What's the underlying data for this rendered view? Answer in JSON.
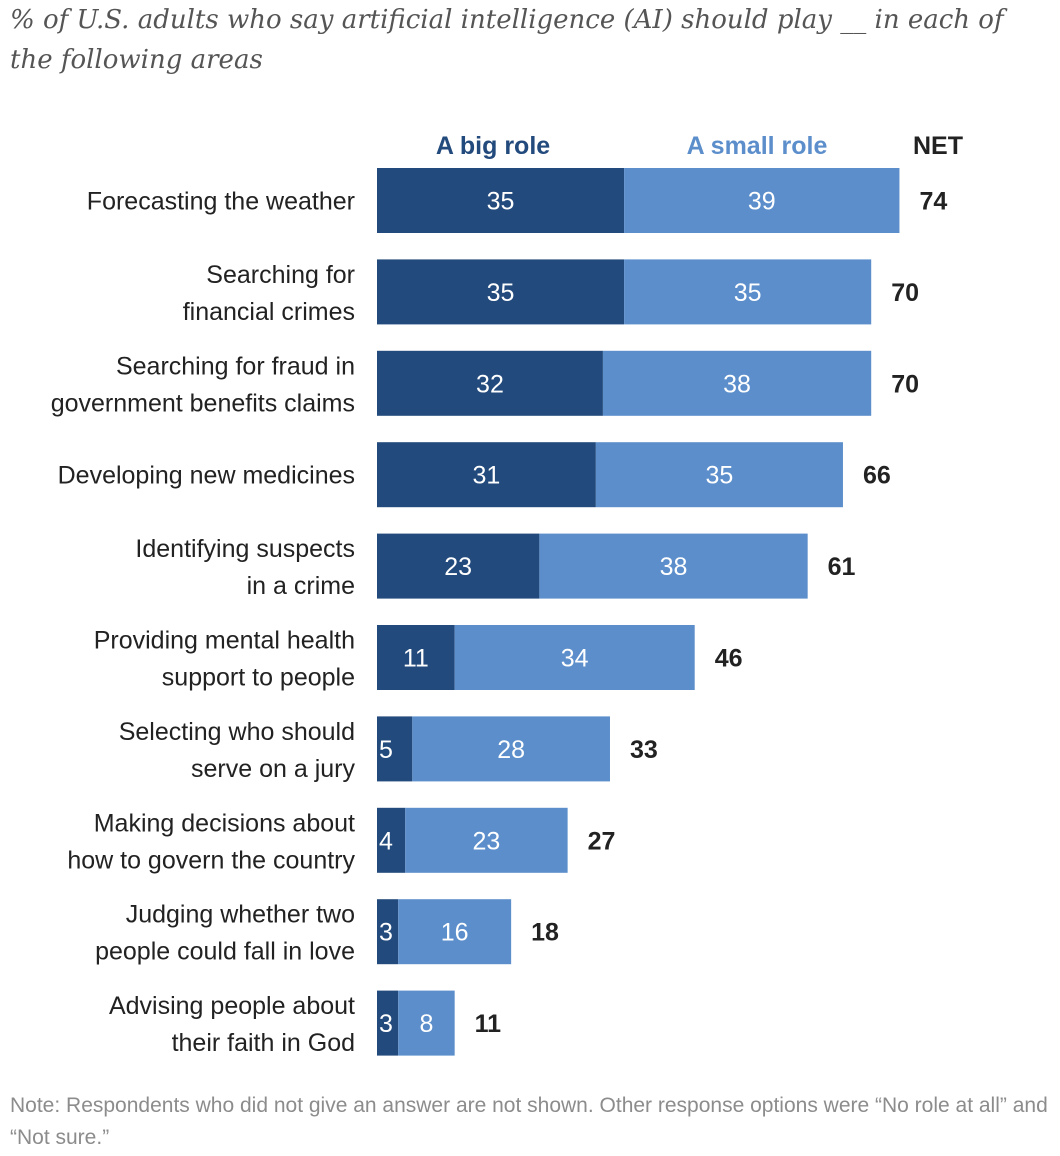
{
  "subtitle": "% of U.S. adults who say artificial intelligence (AI) should play __ in each of the following areas",
  "note": "Note: Respondents who did not give an answer are not shown. Other response options were “No role at all” and “Not sure.”",
  "colors": {
    "big": "#234a7c",
    "small": "#5b8ecb",
    "net": "#222222"
  },
  "chart_data": {
    "type": "bar",
    "orientation": "horizontal",
    "stacked": true,
    "legend": {
      "big_label": "A big role",
      "small_label": "A small role",
      "net_label": "NET"
    },
    "categories": [
      [
        "Forecasting the weather"
      ],
      [
        "Searching for",
        "financial crimes"
      ],
      [
        "Searching for fraud in",
        "government benefits claims"
      ],
      [
        "Developing new medicines"
      ],
      [
        "Identifying suspects",
        "in a crime"
      ],
      [
        "Providing mental health",
        "support to people"
      ],
      [
        "Selecting who should",
        "serve on a jury"
      ],
      [
        "Making decisions about",
        "how to govern the country"
      ],
      [
        "Judging whether two",
        "people could fall in love"
      ],
      [
        "Advising people about",
        "their faith in God"
      ]
    ],
    "series": [
      {
        "name": "A big role",
        "values": [
          35,
          35,
          32,
          31,
          23,
          11,
          5,
          4,
          3,
          3
        ]
      },
      {
        "name": "A small role",
        "values": [
          39,
          35,
          38,
          35,
          38,
          34,
          28,
          23,
          16,
          8
        ]
      }
    ],
    "net": [
      74,
      70,
      70,
      66,
      61,
      46,
      33,
      27,
      18,
      11
    ],
    "xlim": [
      0,
      74
    ]
  }
}
